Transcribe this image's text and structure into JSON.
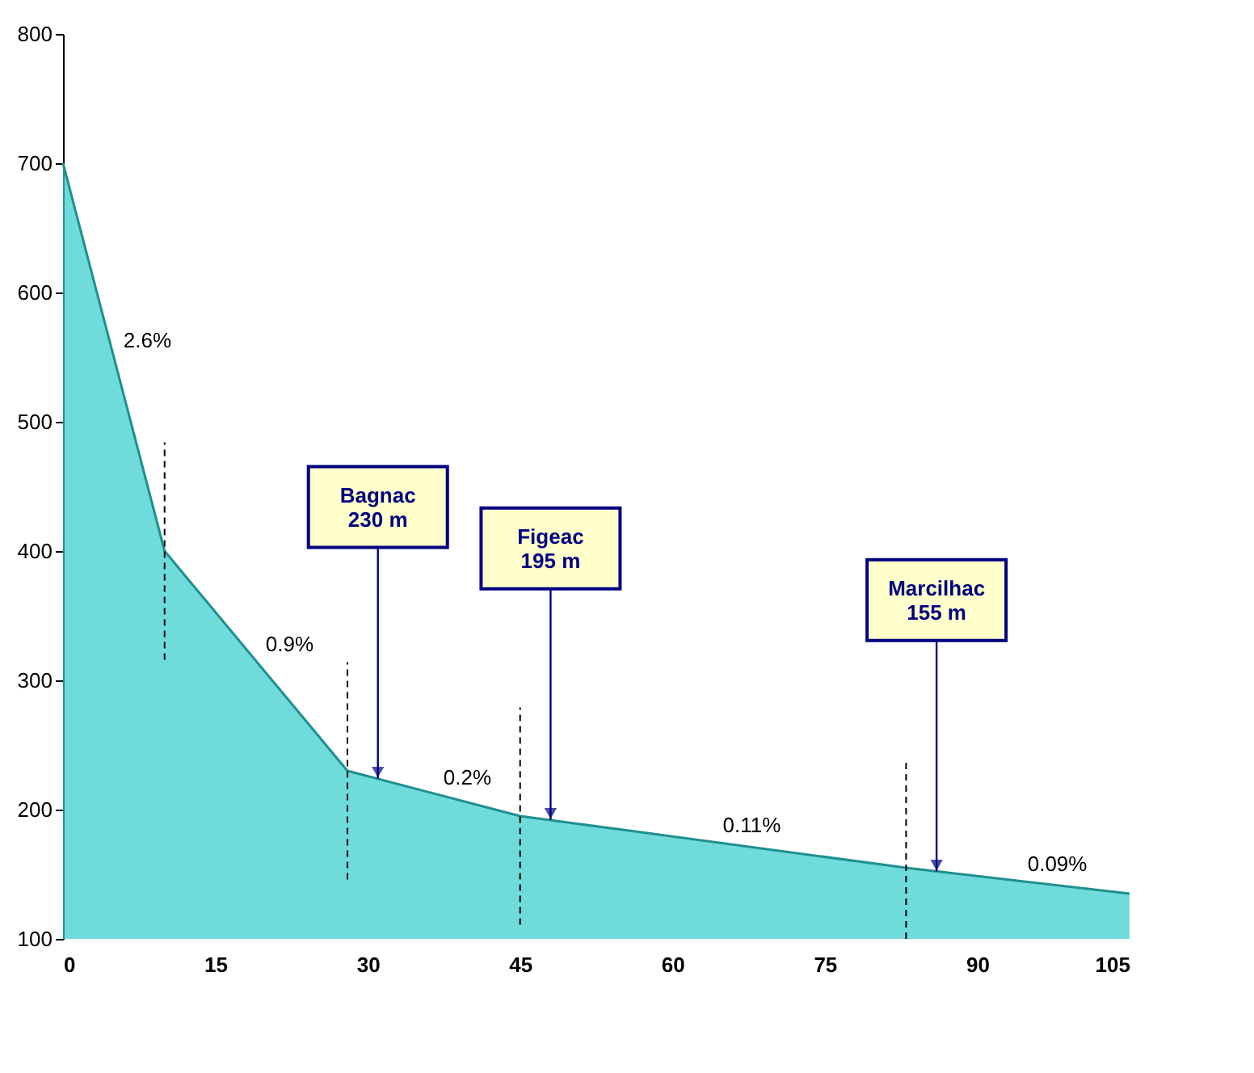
{
  "chart_data": {
    "type": "area",
    "x": [
      0,
      10,
      28,
      45,
      83,
      105
    ],
    "series": [
      {
        "color": "#33cccc",
        "values": [
          700,
          400,
          230,
          195,
          155,
          135
        ]
      }
    ],
    "xlim": [
      0,
      105
    ],
    "xticks": [
      0,
      15,
      30,
      45,
      60,
      75,
      90,
      105
    ],
    "ylim": [
      100,
      800
    ],
    "yticks": [
      100,
      200,
      300,
      400,
      500,
      600,
      700,
      800
    ],
    "ref_lines": [
      {
        "axis": "x",
        "value": 10,
        "line_style": "dashed"
      },
      {
        "axis": "x",
        "value": 28,
        "line_style": "dashed"
      },
      {
        "axis": "x",
        "value": 45,
        "line_style": "dashed"
      },
      {
        "axis": "x",
        "value": 83,
        "line_style": "dashed"
      }
    ],
    "annotations": [
      {
        "text": "Bagnac\n230 m",
        "x": 31,
        "y": 224
      },
      {
        "text": "Figeac\n195 m",
        "x": 48,
        "y": 192
      },
      {
        "text": "Marcilhac\n155 m",
        "x": 86,
        "y": 152
      },
      {
        "text": "2.6%",
        "x": 5,
        "y": 550
      },
      {
        "text": "0.9%",
        "x": 19,
        "y": 315
      },
      {
        "text": "0.2%",
        "x": 36.5,
        "y": 212
      },
      {
        "text": "0.11%",
        "x": 64,
        "y": 175
      },
      {
        "text": "0.09%",
        "x": 94,
        "y": 145
      }
    ]
  }
}
